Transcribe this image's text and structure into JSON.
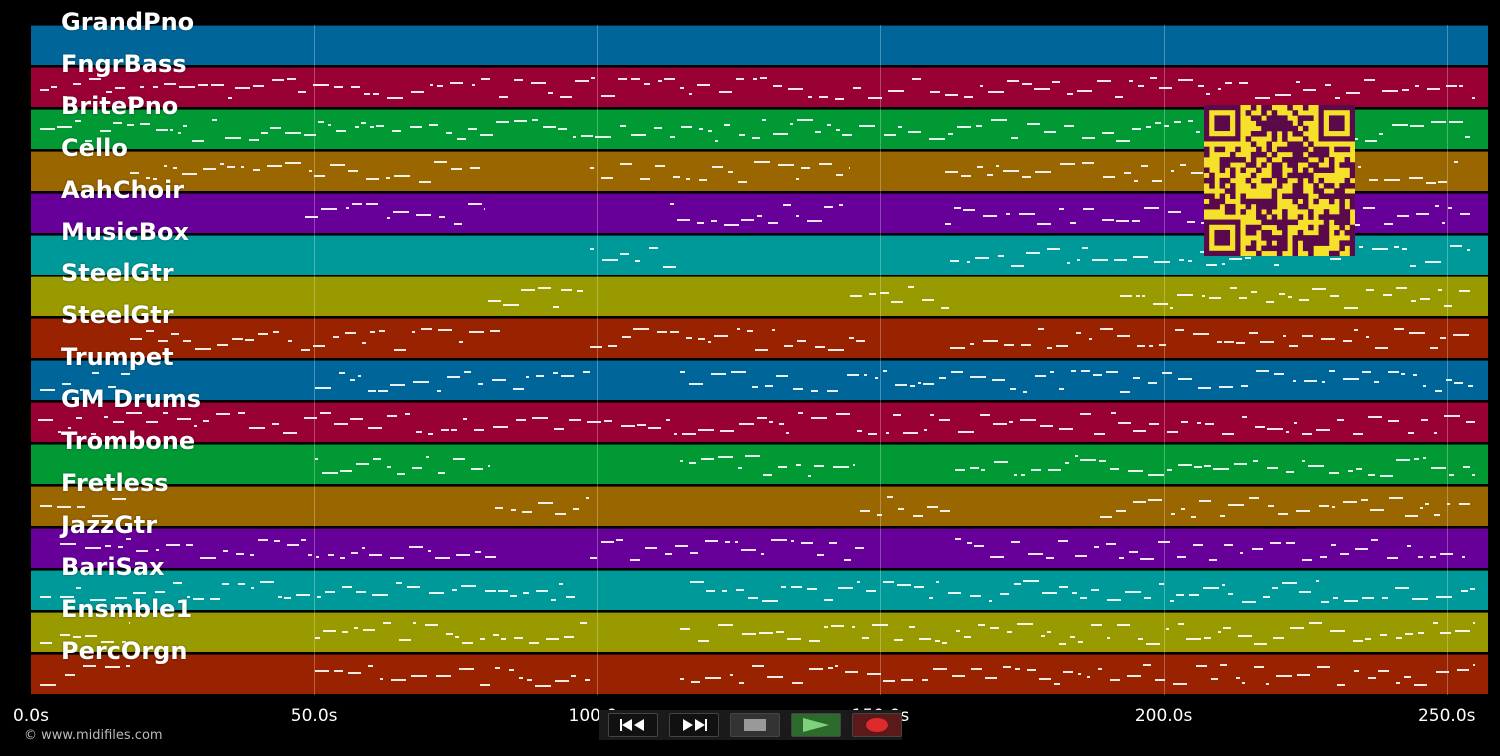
{
  "time_axis": {
    "unit": "s",
    "ticks": [
      "0.0s",
      "50.0s",
      "100.0s",
      "150.0s",
      "200.0s",
      "250.0s"
    ]
  },
  "tracks": [
    {
      "name": "GrandPno",
      "color": "#006699"
    },
    {
      "name": "FngrBass",
      "color": "#990033"
    },
    {
      "name": "BritePno",
      "color": "#009933"
    },
    {
      "name": "Cello",
      "color": "#996600"
    },
    {
      "name": "AahChoir",
      "color": "#660099"
    },
    {
      "name": "MusicBox",
      "color": "#009999"
    },
    {
      "name": "SteelGtr",
      "color": "#999900"
    },
    {
      "name": "SteelGtr",
      "color": "#992200"
    },
    {
      "name": "Trumpet",
      "color": "#006699"
    },
    {
      "name": "GM Drums",
      "color": "#990033"
    },
    {
      "name": "Trombone",
      "color": "#009933"
    },
    {
      "name": "Fretless",
      "color": "#996600"
    },
    {
      "name": "JazzGtr",
      "color": "#660099"
    },
    {
      "name": "BariSax",
      "color": "#009999"
    },
    {
      "name": "Ensmble1",
      "color": "#999900"
    },
    {
      "name": "PercOrgn",
      "color": "#992200"
    }
  ],
  "transport": {
    "rewind_icon": "rewind-icon",
    "fast_forward_icon": "fast-forward-icon",
    "stop_icon": "stop-icon",
    "play_icon": "play-icon",
    "record_icon": "record-icon",
    "accent_play": "#3a8a3a",
    "accent_record": "#cc2222"
  },
  "copyright": "© www.midifiles.com"
}
